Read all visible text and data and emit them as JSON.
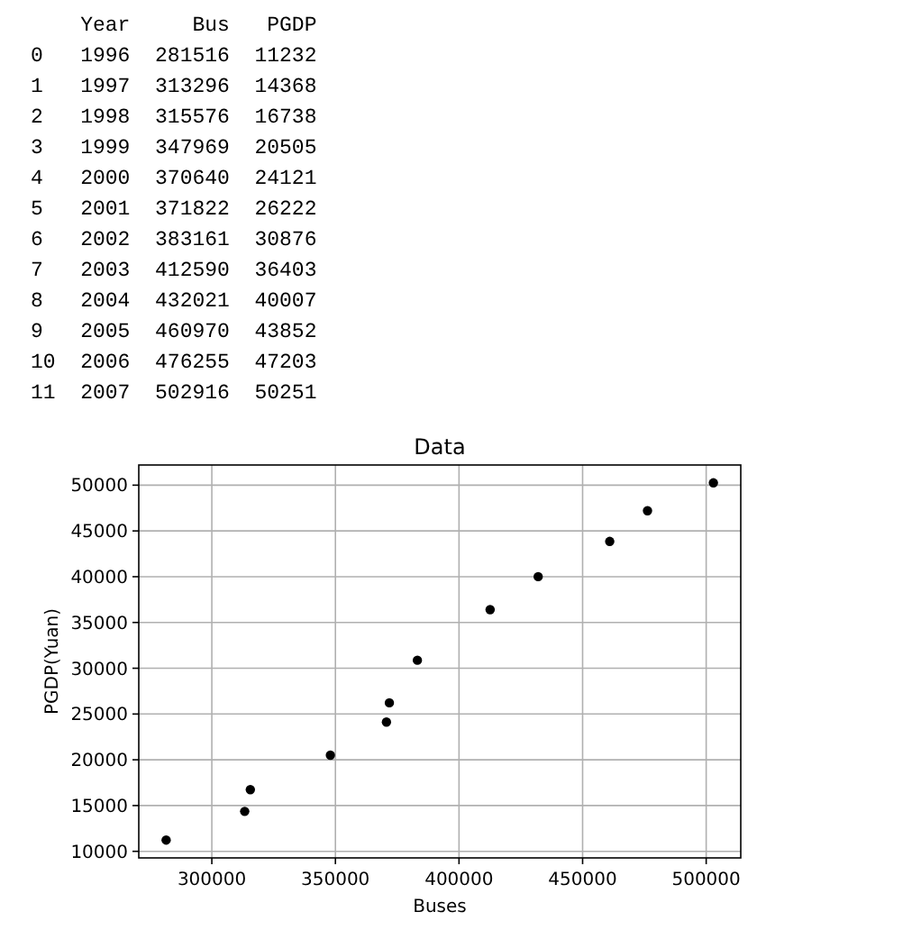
{
  "chart_data": [
    {
      "type": "other",
      "annotations": [
        "    Year     Bus   PGDP",
        "0   1996  281516  11232",
        "1   1997  313296  14368",
        "2   1998  315576  16738",
        "3   1999  347969  20505",
        "4   2000  370640  24121",
        "5   2001  371822  26222",
        "6   2002  383161  30876",
        "7   2003  412590  36403",
        "8   2004  432021  40007",
        "9   2005  460970  43852",
        "10  2006  476255  47203",
        "11  2007  502916  50251"
      ]
    },
    {
      "type": "scatter",
      "title": "Data",
      "xlabel": "Buses",
      "ylabel": "PGDP(Yuan)",
      "x": [
        281516,
        313296,
        315576,
        347969,
        370640,
        371822,
        383161,
        412590,
        432021,
        460970,
        476255,
        502916
      ],
      "values": [
        11232,
        14368,
        16738,
        20505,
        24121,
        26222,
        30876,
        36403,
        40007,
        43852,
        47203,
        50251
      ],
      "color": "#000000",
      "marker": "circle",
      "grid": true,
      "xlim": [
        270446,
        513986
      ],
      "xticks": [
        300000,
        350000,
        400000,
        450000,
        500000
      ],
      "ylim": [
        9281,
        52202
      ],
      "yticks": [
        10000,
        15000,
        20000,
        25000,
        30000,
        35000,
        40000,
        45000,
        50000
      ]
    }
  ]
}
